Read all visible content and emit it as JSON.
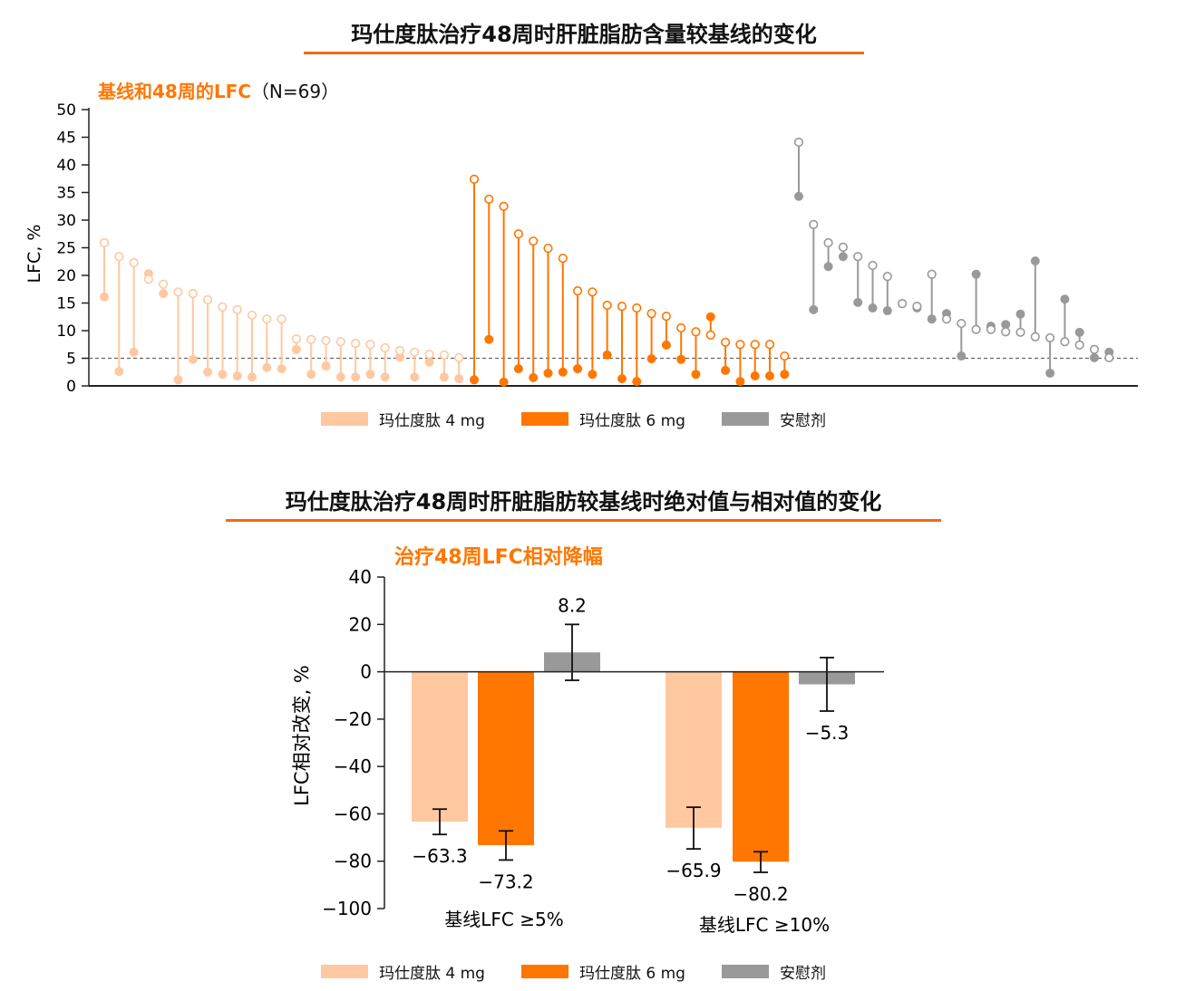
{
  "colors": {
    "mg4": "#FFC8A0",
    "mg6": "#FF7600",
    "placebo": "#999999",
    "accent": "#F26A10"
  },
  "legend": [
    "玛仕度肽 4 mg",
    "玛仕度肽 6 mg",
    "安慰剂"
  ],
  "chart_data": [
    {
      "type": "dumbbell",
      "title": "玛仕度肽治疗48周时肝脏脂肪含量较基线的变化",
      "subtitle": "基线和48周的LFC",
      "subtitle_n": "（N=69）",
      "ylabel": "LFC, %",
      "ylim": [
        0,
        50
      ],
      "yticks": [
        0,
        5,
        10,
        15,
        20,
        25,
        30,
        35,
        40,
        45,
        50
      ],
      "reference_line": 5,
      "marker_note": "open circle = baseline, filled circle = week 48",
      "groups": [
        {
          "name": "玛仕度肽 4 mg",
          "baseline": [
            25.9,
            23.4,
            22.3,
            19.3,
            18.4,
            17.0,
            16.7,
            15.6,
            14.3,
            13.8,
            12.8,
            12.1,
            12.1,
            8.5,
            8.4,
            8.2,
            8.0,
            7.7,
            7.5,
            6.9,
            6.4,
            6.1,
            5.7,
            5.6,
            5.1
          ],
          "week48": [
            16.1,
            2.6,
            6.1,
            20.3,
            16.7,
            1.1,
            4.8,
            2.5,
            2.1,
            1.8,
            1.6,
            3.3,
            3.1,
            6.6,
            2.1,
            3.6,
            1.6,
            1.6,
            2.1,
            1.6,
            5.2,
            1.6,
            4.3,
            1.6,
            1.3
          ]
        },
        {
          "name": "玛仕度肽 6 mg",
          "baseline": [
            37.4,
            33.8,
            32.5,
            27.5,
            26.2,
            24.9,
            23.1,
            17.2,
            17.0,
            14.6,
            14.4,
            14.1,
            13.1,
            12.6,
            10.5,
            9.8,
            9.2,
            7.9,
            7.5,
            7.5,
            7.5,
            5.4
          ],
          "week48": [
            1.1,
            8.4,
            0.7,
            3.1,
            1.5,
            2.3,
            2.5,
            3.1,
            2.1,
            5.6,
            1.3,
            0.8,
            4.9,
            7.4,
            4.8,
            2.1,
            12.5,
            2.8,
            0.8,
            1.8,
            1.8,
            2.1
          ]
        },
        {
          "name": "安慰剂",
          "baseline": [
            44.1,
            29.2,
            25.9,
            25.1,
            23.4,
            21.8,
            19.8,
            14.9,
            14.4,
            20.2,
            12.1,
            11.3,
            10.2,
            10.2,
            9.8,
            9.7,
            8.9,
            8.7,
            8.0,
            7.4,
            6.6,
            5.1
          ],
          "week48": [
            34.3,
            13.8,
            21.6,
            23.4,
            15.1,
            14.1,
            13.6,
            14.9,
            14.1,
            12.1,
            13.1,
            5.4,
            20.2,
            10.8,
            11.1,
            13.0,
            22.6,
            2.3,
            15.7,
            9.7,
            5.1,
            6.1
          ]
        }
      ]
    },
    {
      "type": "bar",
      "title": "玛仕度肽治疗48周时肝脏脂肪较基线时绝对值与相对值的变化",
      "subtitle": "治疗48周LFC相对降幅",
      "ylabel": "LFC相对改变, %",
      "ylim": [
        -100,
        40
      ],
      "yticks": [
        40,
        20,
        0,
        -20,
        -40,
        -60,
        -80,
        -100
      ],
      "ytick_labels": [
        "40",
        "20",
        "0",
        "−20",
        "−40",
        "−60",
        "−80",
        "−100"
      ],
      "categories": [
        "基线LFC ≥5%",
        "基线LFC ≥10%"
      ],
      "series": [
        {
          "name": "玛仕度肽 4 mg",
          "values": [
            -63.3,
            -65.9
          ],
          "labels": [
            "−63.3",
            "−65.9"
          ],
          "err_low": [
            -68.7,
            -74.8
          ],
          "err_high": [
            -58.0,
            -57.2
          ]
        },
        {
          "name": "玛仕度肽 6 mg",
          "values": [
            -73.2,
            -80.2
          ],
          "labels": [
            "−73.2",
            "−80.2"
          ],
          "err_low": [
            -79.5,
            -84.7
          ],
          "err_high": [
            -67.2,
            -76.0
          ]
        },
        {
          "name": "安慰剂",
          "values": [
            8.2,
            -5.3
          ],
          "labels": [
            "8.2",
            "−5.3"
          ],
          "err_low": [
            -3.6,
            -16.6
          ],
          "err_high": [
            20.0,
            6.0
          ]
        }
      ]
    }
  ]
}
